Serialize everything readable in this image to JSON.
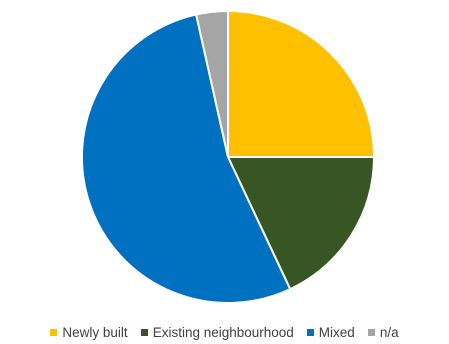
{
  "chart_data": {
    "type": "pie",
    "title": "",
    "categories": [
      "Newly built",
      "Existing neighbourhood",
      "Mixed",
      "n/a"
    ],
    "values": [
      25,
      18,
      53.5,
      3.5
    ],
    "colors": [
      "#FFC000",
      "#375623",
      "#0070C0",
      "#A5A5A5"
    ],
    "start_angle_deg": 0,
    "direction": "clockwise",
    "legend_position": "bottom"
  }
}
